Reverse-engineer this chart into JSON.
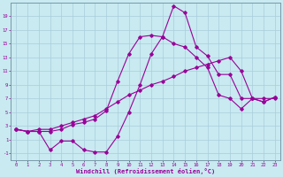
{
  "title": "",
  "xlabel": "Windchill (Refroidissement éolien,°C)",
  "ylabel": "",
  "bg_color": "#c8eaf0",
  "line_color": "#990099",
  "grid_color": "#aaccdd",
  "spine_color": "#7799aa",
  "xlim": [
    -0.5,
    23.5
  ],
  "ylim": [
    -2,
    21
  ],
  "xticks": [
    0,
    1,
    2,
    3,
    4,
    5,
    6,
    7,
    8,
    9,
    10,
    11,
    12,
    13,
    14,
    15,
    16,
    17,
    18,
    19,
    20,
    21,
    22,
    23
  ],
  "yticks": [
    -1,
    1,
    3,
    5,
    7,
    9,
    11,
    13,
    15,
    17,
    19
  ],
  "line1_x": [
    0,
    1,
    2,
    3,
    4,
    5,
    6,
    7,
    8,
    9,
    10,
    11,
    12,
    13,
    14,
    15,
    16,
    17,
    18,
    19,
    20,
    21,
    22,
    23
  ],
  "line1_y": [
    2.5,
    2.2,
    2.2,
    2.2,
    2.5,
    3.2,
    3.5,
    4.0,
    5.2,
    9.5,
    13.5,
    16.0,
    16.2,
    16.0,
    20.5,
    19.5,
    14.5,
    13.2,
    10.5,
    10.5,
    7.0,
    7.0,
    7.0,
    7.0
  ],
  "line2_x": [
    0,
    1,
    2,
    3,
    4,
    5,
    6,
    7,
    8,
    9,
    10,
    11,
    12,
    13,
    14,
    15,
    16,
    17,
    18,
    19,
    20,
    21,
    22,
    23
  ],
  "line2_y": [
    2.5,
    2.2,
    2.5,
    2.5,
    3.0,
    3.5,
    4.0,
    4.5,
    5.5,
    6.5,
    7.5,
    8.2,
    9.0,
    9.5,
    10.2,
    11.0,
    11.5,
    12.0,
    12.5,
    13.0,
    11.0,
    7.0,
    6.5,
    7.2
  ],
  "line3_x": [
    0,
    1,
    2,
    3,
    4,
    5,
    6,
    7,
    8,
    9,
    10,
    11,
    12,
    13,
    14,
    15,
    16,
    17,
    18,
    19,
    20,
    21,
    22,
    23
  ],
  "line3_y": [
    2.5,
    2.2,
    2.2,
    -0.5,
    0.8,
    0.8,
    -0.5,
    -0.8,
    -0.8,
    1.5,
    5.0,
    9.0,
    13.5,
    16.0,
    15.0,
    14.5,
    13.0,
    11.5,
    7.5,
    7.0,
    5.5,
    7.0,
    6.5,
    7.2
  ]
}
